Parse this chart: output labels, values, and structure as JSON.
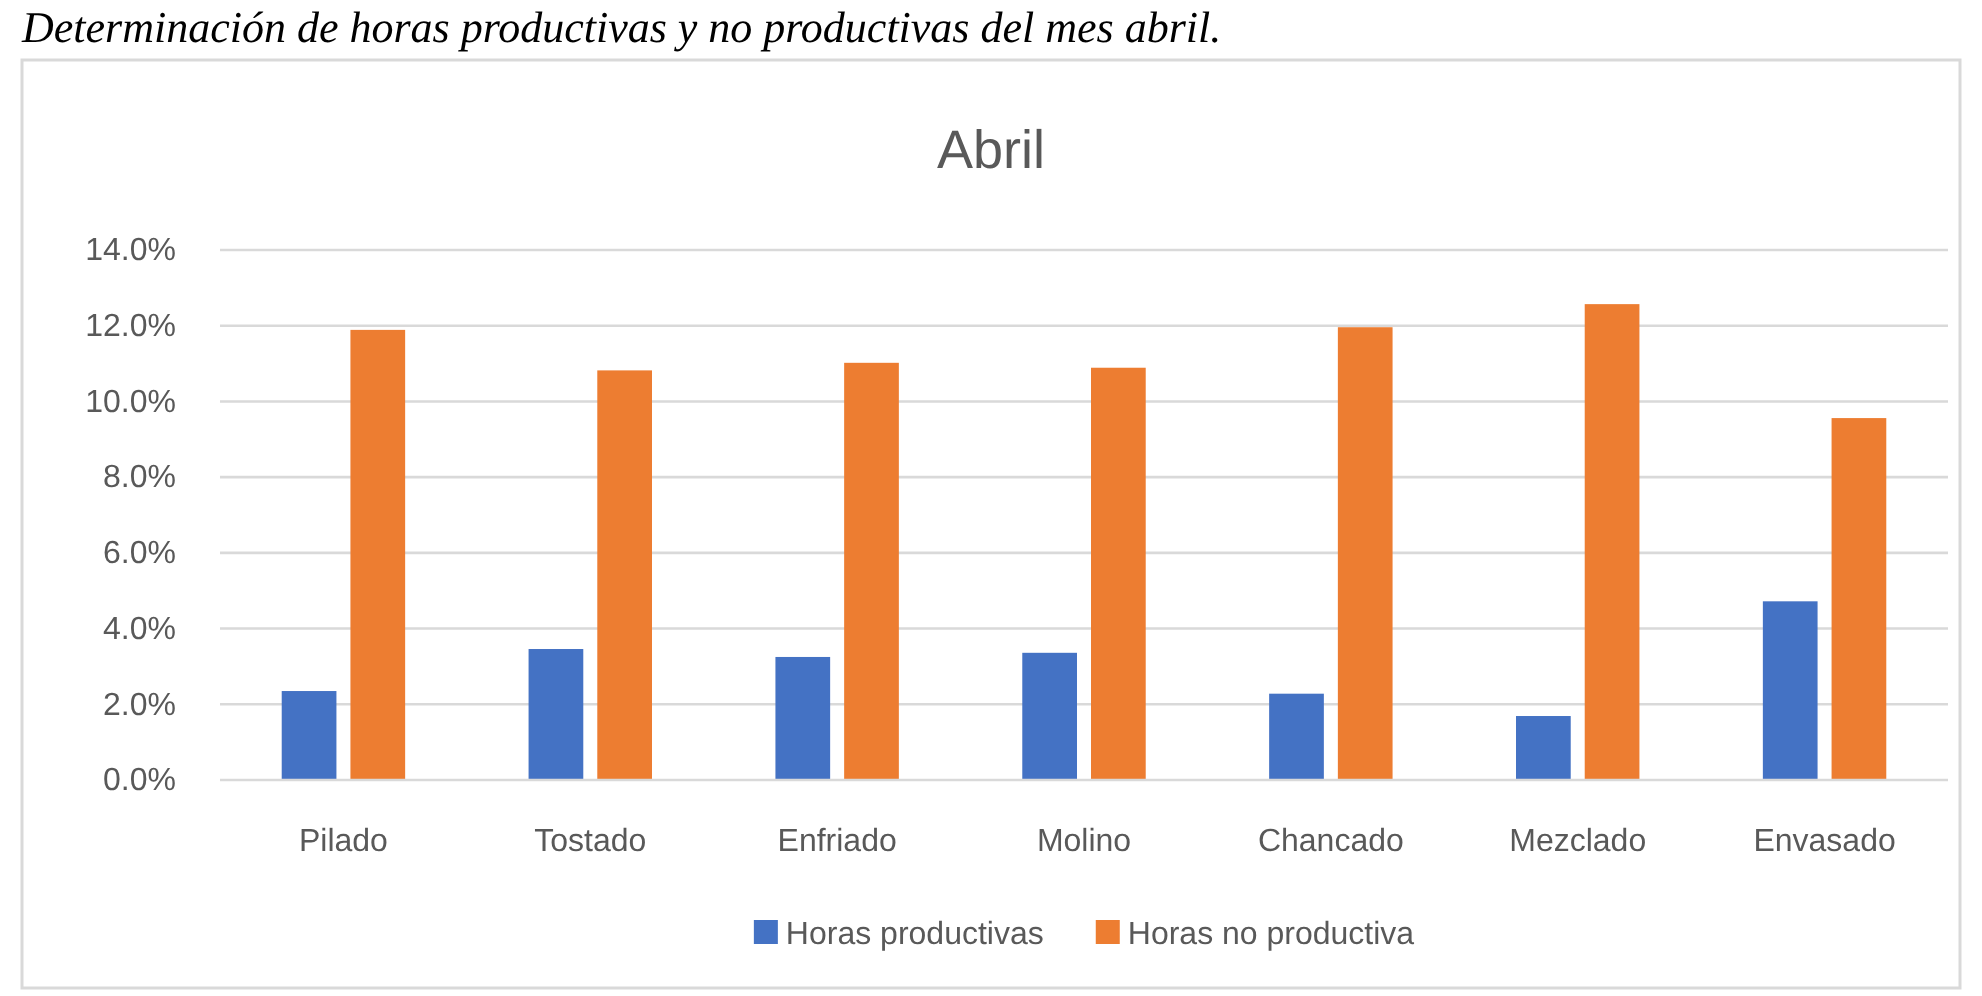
{
  "chart_data": {
    "type": "bar",
    "title": "Abril",
    "annotations": [
      "Determinación de horas productivas y no productivas del mes abril."
    ],
    "categories": [
      "Pilado",
      "Tostado",
      "Enfriado",
      "Molino",
      "Chancado",
      "Mezclado",
      "Envasado"
    ],
    "series": [
      {
        "name": "Horas productivas",
        "color": "#4472c4",
        "values": [
          2.35,
          3.46,
          3.25,
          3.36,
          2.28,
          1.69,
          4.72
        ]
      },
      {
        "name": "Horas no productiva",
        "color": "#ed7d31",
        "values": [
          11.89,
          10.82,
          11.02,
          10.89,
          11.96,
          12.57,
          9.56
        ]
      }
    ],
    "ylim": [
      0,
      14
    ],
    "yticks": [
      {
        "value": 0,
        "label": "0.0%"
      },
      {
        "value": 2,
        "label": "2.0%"
      },
      {
        "value": 4,
        "label": "4.0%"
      },
      {
        "value": 6,
        "label": "6.0%"
      },
      {
        "value": 8,
        "label": "8.0%"
      },
      {
        "value": 10,
        "label": "10.0%"
      },
      {
        "value": 12,
        "label": "12.0%"
      },
      {
        "value": 14,
        "label": "14.0%"
      }
    ],
    "grid": "y",
    "legend": "bottom"
  }
}
